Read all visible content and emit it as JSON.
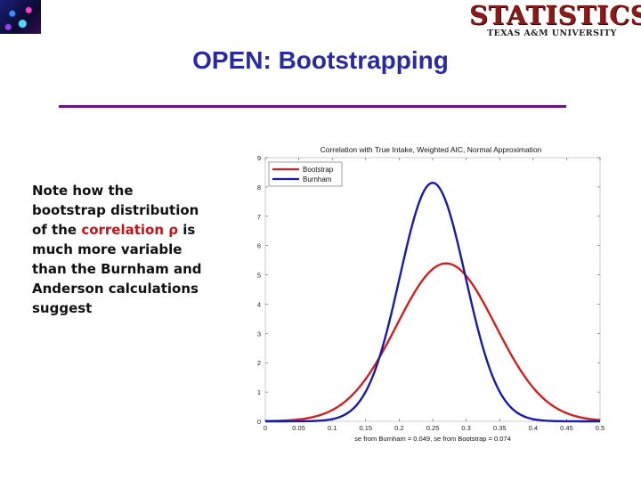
{
  "header": {
    "brand_title": "STATISTICS",
    "brand_subtitle": "TEXAS A&M UNIVERSITY",
    "slide_title": "OPEN: Bootstrapping"
  },
  "note": {
    "part1": "Note how the bootstrap distribution of the ",
    "highlight": "correlation  ρ",
    "part2": " is much more variable than the Burnham and Anderson calculations suggest"
  },
  "colors": {
    "title": "#2a2aa0",
    "rule": "#6a1488",
    "bootstrap": "#cc2222",
    "burnham": "#1a1aa8",
    "highlight": "#c0141b"
  },
  "chart_data": {
    "type": "line",
    "title": "Correlation with True Intake, Weighted AIC, Normal Approximation",
    "xlabel": "se from Burnham = 0.049, se from Bootstrap = 0.074",
    "ylabel": "",
    "xlim": [
      0,
      0.5
    ],
    "ylim": [
      0,
      9
    ],
    "xticks": [
      "0",
      "0.05",
      "0.1",
      "0.15",
      "0.2",
      "0.25",
      "0.3",
      "0.35",
      "0.4",
      "0.45",
      "0.5"
    ],
    "yticks": [
      "0",
      "1",
      "2",
      "3",
      "4",
      "5",
      "6",
      "7",
      "8",
      "9"
    ],
    "legend_position": "top-left",
    "grid": false,
    "series": [
      {
        "name": "Bootstrap",
        "color": "#cc2222",
        "distribution": "normal",
        "mean": 0.27,
        "sd": 0.074
      },
      {
        "name": "Burnham",
        "color": "#1a1aa8",
        "distribution": "normal",
        "mean": 0.25,
        "sd": 0.049
      }
    ]
  }
}
